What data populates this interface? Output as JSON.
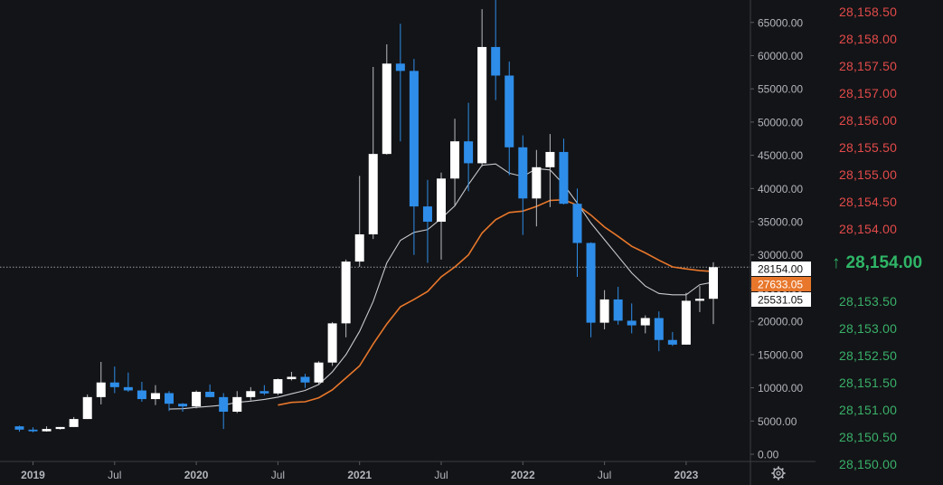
{
  "chart_data": {
    "type": "candlestick",
    "interval": "1 month",
    "y_axis": {
      "min": 0,
      "max": 70000,
      "ticks": [
        0,
        5000,
        10000,
        15000,
        20000,
        25000,
        30000,
        35000,
        40000,
        45000,
        50000,
        55000,
        60000,
        65000
      ],
      "tick_labels": [
        "0.00",
        "5000.00",
        "10000.00",
        "15000.00",
        "20000.00",
        "25000.00",
        "30000.00",
        "35000.00",
        "40000.00",
        "45000.00",
        "50000.00",
        "55000.00",
        "60000.00",
        "65000.00"
      ]
    },
    "x_axis": {
      "labels": [
        {
          "month": "2019-01",
          "text": "2019"
        },
        {
          "month": "2019-07",
          "text": "Jul"
        },
        {
          "month": "2020-01",
          "text": "2020"
        },
        {
          "month": "2020-07",
          "text": "Jul"
        },
        {
          "month": "2021-01",
          "text": "2021"
        },
        {
          "month": "2021-07",
          "text": "Jul"
        },
        {
          "month": "2022-01",
          "text": "2022"
        },
        {
          "month": "2022-07",
          "text": "Jul"
        },
        {
          "month": "2023-01",
          "text": "2023"
        }
      ]
    },
    "candles": [
      {
        "date": "2018-12",
        "o": 4200,
        "h": 4300,
        "l": 3400,
        "c": 3700
      },
      {
        "date": "2019-01",
        "o": 3700,
        "h": 4050,
        "l": 3300,
        "c": 3450
      },
      {
        "date": "2019-02",
        "o": 3450,
        "h": 4200,
        "l": 3400,
        "c": 3800
      },
      {
        "date": "2019-03",
        "o": 3800,
        "h": 4100,
        "l": 3700,
        "c": 4100
      },
      {
        "date": "2019-04",
        "o": 4100,
        "h": 5600,
        "l": 4100,
        "c": 5300
      },
      {
        "date": "2019-05",
        "o": 5300,
        "h": 9000,
        "l": 5300,
        "c": 8600
      },
      {
        "date": "2019-06",
        "o": 8600,
        "h": 13900,
        "l": 7500,
        "c": 10800
      },
      {
        "date": "2019-07",
        "o": 10800,
        "h": 13200,
        "l": 9200,
        "c": 10100
      },
      {
        "date": "2019-08",
        "o": 10100,
        "h": 12300,
        "l": 9400,
        "c": 9600
      },
      {
        "date": "2019-09",
        "o": 9600,
        "h": 10900,
        "l": 7900,
        "c": 8300
      },
      {
        "date": "2019-10",
        "o": 8300,
        "h": 10400,
        "l": 7400,
        "c": 9200
      },
      {
        "date": "2019-11",
        "o": 9200,
        "h": 9500,
        "l": 6500,
        "c": 7600
      },
      {
        "date": "2019-12",
        "o": 7600,
        "h": 7700,
        "l": 6400,
        "c": 7200
      },
      {
        "date": "2020-01",
        "o": 7200,
        "h": 9600,
        "l": 6900,
        "c": 9400
      },
      {
        "date": "2020-02",
        "o": 9400,
        "h": 10500,
        "l": 8600,
        "c": 8600
      },
      {
        "date": "2020-03",
        "o": 8600,
        "h": 9200,
        "l": 3800,
        "c": 6400
      },
      {
        "date": "2020-04",
        "o": 6400,
        "h": 9500,
        "l": 6200,
        "c": 8600
      },
      {
        "date": "2020-05",
        "o": 8600,
        "h": 10100,
        "l": 8100,
        "c": 9500
      },
      {
        "date": "2020-06",
        "o": 9500,
        "h": 10400,
        "l": 8900,
        "c": 9150
      },
      {
        "date": "2020-07",
        "o": 9150,
        "h": 11400,
        "l": 8900,
        "c": 11300
      },
      {
        "date": "2020-08",
        "o": 11300,
        "h": 12400,
        "l": 11100,
        "c": 11650
      },
      {
        "date": "2020-09",
        "o": 11650,
        "h": 12100,
        "l": 10000,
        "c": 10800
      },
      {
        "date": "2020-10",
        "o": 10800,
        "h": 14000,
        "l": 10500,
        "c": 13800
      },
      {
        "date": "2020-11",
        "o": 13800,
        "h": 19900,
        "l": 13300,
        "c": 19700
      },
      {
        "date": "2020-12",
        "o": 19700,
        "h": 29300,
        "l": 17600,
        "c": 29000
      },
      {
        "date": "2021-01",
        "o": 29000,
        "h": 41900,
        "l": 28200,
        "c": 33100
      },
      {
        "date": "2021-02",
        "o": 33100,
        "h": 58300,
        "l": 32400,
        "c": 45200
      },
      {
        "date": "2021-03",
        "o": 45200,
        "h": 61700,
        "l": 45100,
        "c": 58800
      },
      {
        "date": "2021-04",
        "o": 58800,
        "h": 64800,
        "l": 47100,
        "c": 57700
      },
      {
        "date": "2021-05",
        "o": 57700,
        "h": 59500,
        "l": 30000,
        "c": 37300
      },
      {
        "date": "2021-06",
        "o": 37300,
        "h": 41300,
        "l": 28800,
        "c": 35000
      },
      {
        "date": "2021-07",
        "o": 35000,
        "h": 42400,
        "l": 29300,
        "c": 41500
      },
      {
        "date": "2021-08",
        "o": 41500,
        "h": 50500,
        "l": 37300,
        "c": 47100
      },
      {
        "date": "2021-09",
        "o": 47100,
        "h": 52900,
        "l": 39600,
        "c": 43800
      },
      {
        "date": "2021-10",
        "o": 43800,
        "h": 67000,
        "l": 43300,
        "c": 61300
      },
      {
        "date": "2021-11",
        "o": 61300,
        "h": 69000,
        "l": 53300,
        "c": 57000
      },
      {
        "date": "2021-12",
        "o": 57000,
        "h": 59100,
        "l": 42000,
        "c": 46200
      },
      {
        "date": "2022-01",
        "o": 46200,
        "h": 48000,
        "l": 33000,
        "c": 38500
      },
      {
        "date": "2022-02",
        "o": 38500,
        "h": 45800,
        "l": 34300,
        "c": 43200
      },
      {
        "date": "2022-03",
        "o": 43200,
        "h": 48200,
        "l": 37200,
        "c": 45500
      },
      {
        "date": "2022-04",
        "o": 45500,
        "h": 47500,
        "l": 37600,
        "c": 37700
      },
      {
        "date": "2022-05",
        "o": 37700,
        "h": 40000,
        "l": 26700,
        "c": 31800
      },
      {
        "date": "2022-06",
        "o": 31800,
        "h": 31900,
        "l": 17600,
        "c": 19800
      },
      {
        "date": "2022-07",
        "o": 19800,
        "h": 24700,
        "l": 18800,
        "c": 23300
      },
      {
        "date": "2022-08",
        "o": 23300,
        "h": 25200,
        "l": 19500,
        "c": 20100
      },
      {
        "date": "2022-09",
        "o": 20100,
        "h": 22700,
        "l": 18200,
        "c": 19400
      },
      {
        "date": "2022-10",
        "o": 19400,
        "h": 20900,
        "l": 18200,
        "c": 20500
      },
      {
        "date": "2022-11",
        "o": 20500,
        "h": 21500,
        "l": 15500,
        "c": 17200
      },
      {
        "date": "2022-12",
        "o": 17200,
        "h": 18400,
        "l": 16300,
        "c": 16500
      },
      {
        "date": "2023-01",
        "o": 16500,
        "h": 24300,
        "l": 16500,
        "c": 23100
      },
      {
        "date": "2023-02",
        "o": 23100,
        "h": 25300,
        "l": 21400,
        "c": 23400
      },
      {
        "date": "2023-03",
        "o": 23400,
        "h": 28900,
        "l": 19600,
        "c": 28154
      }
    ],
    "series": [
      {
        "color": "#c8cacf",
        "points": [
          {
            "date": "2019-11",
            "v": 6800
          },
          {
            "date": "2019-12",
            "v": 6850
          },
          {
            "date": "2020-01",
            "v": 7050
          },
          {
            "date": "2020-02",
            "v": 7200
          },
          {
            "date": "2020-03",
            "v": 7400
          },
          {
            "date": "2020-04",
            "v": 7800
          },
          {
            "date": "2020-05",
            "v": 8000
          },
          {
            "date": "2020-06",
            "v": 8250
          },
          {
            "date": "2020-07",
            "v": 8600
          },
          {
            "date": "2020-08",
            "v": 9100
          },
          {
            "date": "2020-09",
            "v": 9600
          },
          {
            "date": "2020-10",
            "v": 10500
          },
          {
            "date": "2020-11",
            "v": 12400
          },
          {
            "date": "2020-12",
            "v": 15000
          },
          {
            "date": "2021-01",
            "v": 18500
          },
          {
            "date": "2021-02",
            "v": 23000
          },
          {
            "date": "2021-03",
            "v": 28800
          },
          {
            "date": "2021-04",
            "v": 32200
          },
          {
            "date": "2021-05",
            "v": 33400
          },
          {
            "date": "2021-06",
            "v": 33800
          },
          {
            "date": "2021-07",
            "v": 35500
          },
          {
            "date": "2021-08",
            "v": 37400
          },
          {
            "date": "2021-09",
            "v": 40600
          },
          {
            "date": "2021-10",
            "v": 43500
          },
          {
            "date": "2021-11",
            "v": 43700
          },
          {
            "date": "2021-12",
            "v": 42300
          },
          {
            "date": "2022-01",
            "v": 41800
          },
          {
            "date": "2022-02",
            "v": 43000
          },
          {
            "date": "2022-03",
            "v": 42800
          },
          {
            "date": "2022-04",
            "v": 40600
          },
          {
            "date": "2022-05",
            "v": 37800
          },
          {
            "date": "2022-06",
            "v": 34800
          },
          {
            "date": "2022-07",
            "v": 32300
          },
          {
            "date": "2022-08",
            "v": 29800
          },
          {
            "date": "2022-09",
            "v": 27300
          },
          {
            "date": "2022-10",
            "v": 25300
          },
          {
            "date": "2022-11",
            "v": 24200
          },
          {
            "date": "2022-12",
            "v": 24000
          },
          {
            "date": "2023-01",
            "v": 24000
          },
          {
            "date": "2023-02",
            "v": 25531
          },
          {
            "date": "2023-03",
            "v": 25900
          }
        ]
      },
      {
        "color": "#e8772b",
        "points": [
          {
            "date": "2020-07",
            "v": 7400
          },
          {
            "date": "2020-08",
            "v": 7800
          },
          {
            "date": "2020-09",
            "v": 7900
          },
          {
            "date": "2020-10",
            "v": 8500
          },
          {
            "date": "2020-11",
            "v": 9700
          },
          {
            "date": "2020-12",
            "v": 11500
          },
          {
            "date": "2021-01",
            "v": 13300
          },
          {
            "date": "2021-02",
            "v": 16600
          },
          {
            "date": "2021-03",
            "v": 19600
          },
          {
            "date": "2021-04",
            "v": 22200
          },
          {
            "date": "2021-05",
            "v": 23300
          },
          {
            "date": "2021-06",
            "v": 24500
          },
          {
            "date": "2021-07",
            "v": 26700
          },
          {
            "date": "2021-08",
            "v": 28200
          },
          {
            "date": "2021-09",
            "v": 30000
          },
          {
            "date": "2021-10",
            "v": 33300
          },
          {
            "date": "2021-11",
            "v": 35300
          },
          {
            "date": "2021-12",
            "v": 36400
          },
          {
            "date": "2022-01",
            "v": 36600
          },
          {
            "date": "2022-02",
            "v": 37300
          },
          {
            "date": "2022-03",
            "v": 38200
          },
          {
            "date": "2022-04",
            "v": 38300
          },
          {
            "date": "2022-05",
            "v": 37500
          },
          {
            "date": "2022-06",
            "v": 36000
          },
          {
            "date": "2022-07",
            "v": 34200
          },
          {
            "date": "2022-08",
            "v": 32800
          },
          {
            "date": "2022-09",
            "v": 31300
          },
          {
            "date": "2022-10",
            "v": 30300
          },
          {
            "date": "2022-11",
            "v": 29200
          },
          {
            "date": "2022-12",
            "v": 28200
          },
          {
            "date": "2023-01",
            "v": 27900
          },
          {
            "date": "2023-02",
            "v": 27633
          },
          {
            "date": "2023-03",
            "v": 27500
          }
        ]
      }
    ],
    "price_tags": [
      {
        "text": "28154.00",
        "value": 28154,
        "bg": "#ffffff",
        "fg": "#111111"
      },
      {
        "text": "27633.05",
        "value": 27633.05,
        "bg": "#e8772b",
        "fg": "#ffffff"
      },
      {
        "text": "25531.05",
        "value": 25531.05,
        "bg": "#ffffff",
        "fg": "#111111"
      }
    ],
    "current_price_line": 28154,
    "colors": {
      "up": "#ffffff",
      "down": "#2e8de8",
      "wick": "#9a9ca1"
    }
  },
  "price_ladder": {
    "above": [
      "28,158.50",
      "28,158.00",
      "28,157.50",
      "28,157.00",
      "28,156.00",
      "28,155.50",
      "28,155.00",
      "28,154.50",
      "28,154.00"
    ],
    "current": "28,154.00",
    "current_arrow": "↑",
    "below": [
      "28,153.50",
      "28,153.00",
      "28,152.50",
      "28,151.50",
      "28,151.00",
      "28,150.50",
      "28,150.00"
    ],
    "up_color": "#e24a4a",
    "down_color": "#39b069"
  },
  "toolbar": {
    "settings_icon": "gear-icon"
  }
}
